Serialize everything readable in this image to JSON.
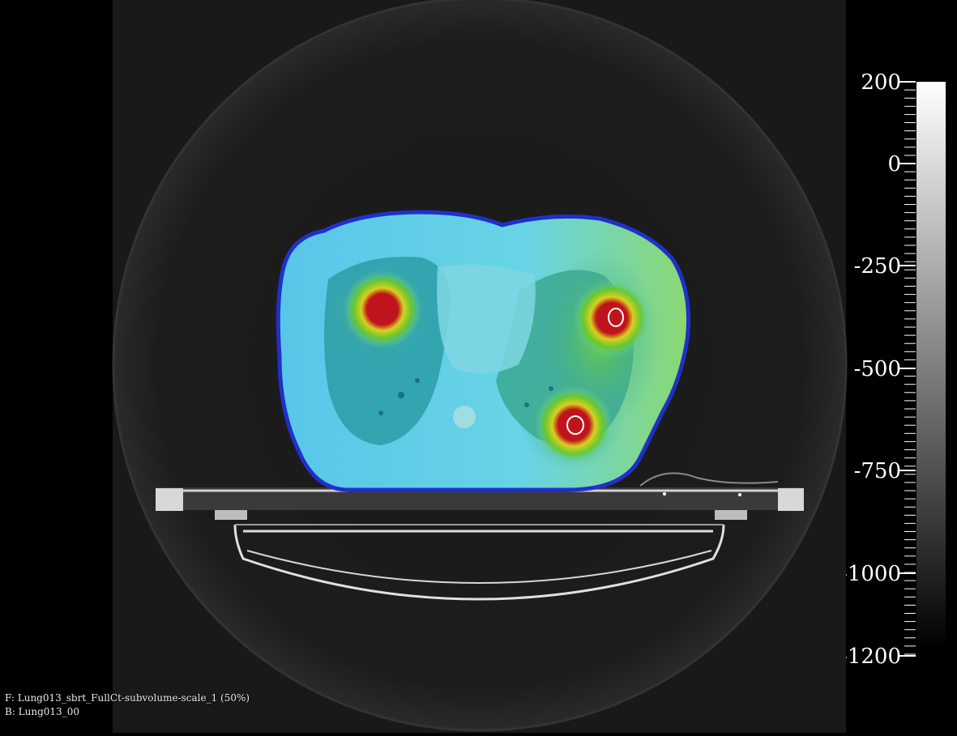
{
  "overlay": {
    "foreground_label": "F: Lung013_sbrt_FullCt-subvolume-scale_1 (50%)",
    "background_label": "B: Lung013_00"
  },
  "colorbar": {
    "labels": [
      "200",
      "0",
      "-250",
      "-500",
      "-750",
      "-1000",
      "-1200"
    ],
    "min": -1200,
    "max": 200,
    "gradient_top": "#ffffff",
    "gradient_bottom": "#000000"
  },
  "colors": {
    "dose_high": "#c0141c",
    "dose_mid": "#7ccf2a",
    "dose_low": "#5fd8e8",
    "dose_edge": "#1f2fd0",
    "contour": "#ffffff"
  }
}
